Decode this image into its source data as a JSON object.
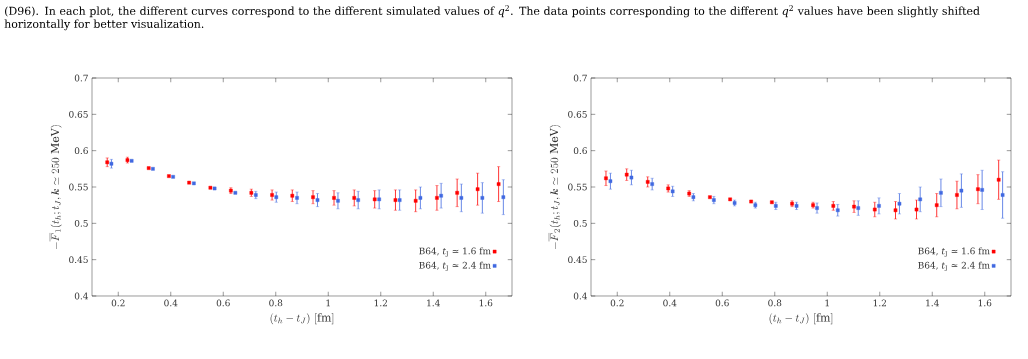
{
  "chart_data": [
    {
      "type": "scatter",
      "xlabel": "(t_h - t_J)\\ [\\mathrm{fm}]",
      "ylabel": "-\\overline{F}_1(t_h; t_J, \\boldsymbol{k} \\simeq 250\\ \\mathrm{MeV})",
      "annotations": [
        "(D96). In each plot, the different curves correspond to the different simulated values of *q*$^{2}$. The data points corresponding to the different *q*$^{2}$ values have been slightly shifted horizontally for better visualization."
      ],
      "xlim": [
        0.1,
        1.7
      ],
      "ylim": [
        0.4,
        0.7
      ],
      "xticks": [
        0.2,
        0.4,
        0.6,
        0.8,
        1,
        1.2,
        1.4,
        1.6
      ],
      "yticks": [
        0.4,
        0.45,
        0.5,
        0.55,
        0.6,
        0.65,
        0.7
      ],
      "grid": false,
      "legend": "bottom right",
      "marker": "square",
      "series": [
        {
          "name": "B64, *t*$_{J}$ ≃ 1.6 fm",
          "color": "#ff0000",
          "x": [
            0.158,
            0.235,
            0.316,
            0.393,
            0.47,
            0.551,
            0.629,
            0.707,
            0.786,
            0.863,
            0.942,
            1.022,
            1.099,
            1.177,
            1.256,
            1.333,
            1.414,
            1.491,
            1.569,
            1.649
          ],
          "values": [
            0.584,
            0.587,
            0.576,
            0.565,
            0.556,
            0.549,
            0.545,
            0.542,
            0.539,
            0.538,
            0.536,
            0.535,
            0.535,
            0.533,
            0.532,
            0.531,
            0.535,
            0.542,
            0.547,
            0.554
          ],
          "errors": [
            0.006,
            0.004,
            null,
            null,
            null,
            null,
            0.004,
            0.005,
            0.007,
            0.008,
            0.009,
            0.01,
            0.011,
            0.012,
            0.014,
            0.015,
            0.017,
            0.019,
            0.022,
            0.024
          ]
        },
        {
          "name": "B64, *t*$_{J}$ ≃ 2.4 fm",
          "color": "#4169e1",
          "x": [
            0.174,
            0.251,
            0.332,
            0.409,
            0.488,
            0.567,
            0.646,
            0.724,
            0.802,
            0.881,
            0.959,
            1.037,
            1.114,
            1.194,
            1.272,
            1.351,
            1.43,
            1.507,
            1.587,
            1.667
          ],
          "values": [
            0.582,
            0.586,
            0.575,
            0.564,
            0.555,
            0.548,
            0.542,
            0.539,
            0.536,
            0.535,
            0.532,
            0.531,
            0.532,
            0.533,
            0.532,
            0.535,
            0.538,
            0.535,
            0.535,
            0.536
          ],
          "errors": [
            0.006,
            null,
            null,
            null,
            null,
            null,
            null,
            0.005,
            0.007,
            0.008,
            0.009,
            0.011,
            0.012,
            0.013,
            0.014,
            0.015,
            0.017,
            0.019,
            0.021,
            0.024
          ]
        }
      ]
    },
    {
      "type": "scatter",
      "xlabel": "(t_h - t_J)\\ [\\mathrm{fm}]",
      "ylabel": "-\\overline{F}_2(t_h; t_J, \\boldsymbol{k} \\simeq 250\\ \\mathrm{MeV})",
      "xlim": [
        0.1,
        1.7
      ],
      "ylim": [
        0.4,
        0.7
      ],
      "xticks": [
        0.2,
        0.4,
        0.6,
        0.8,
        1,
        1.2,
        1.4,
        1.6
      ],
      "yticks": [
        0.4,
        0.45,
        0.5,
        0.55,
        0.6,
        0.65,
        0.7
      ],
      "grid": false,
      "legend": "bottom right",
      "marker": "square",
      "series": [
        {
          "name": "B64, *t*$_{J}$ ≃ 1.6 fm",
          "color": "#ff0000",
          "x": [
            0.157,
            0.236,
            0.316,
            0.394,
            0.474,
            0.553,
            0.63,
            0.71,
            0.789,
            0.866,
            0.946,
            1.023,
            1.102,
            1.181,
            1.26,
            1.34,
            1.417,
            1.494,
            1.574,
            1.653
          ],
          "values": [
            0.562,
            0.567,
            0.557,
            0.548,
            0.541,
            0.536,
            0.533,
            0.53,
            0.529,
            0.527,
            0.525,
            0.524,
            0.523,
            0.519,
            0.518,
            0.519,
            0.525,
            0.539,
            0.547,
            0.56
          ],
          "errors": [
            0.01,
            0.008,
            0.007,
            0.005,
            0.004,
            null,
            null,
            null,
            null,
            0.004,
            0.004,
            0.006,
            0.008,
            0.01,
            0.012,
            0.013,
            0.016,
            0.019,
            0.02,
            0.027
          ]
        },
        {
          "name": "B64, *t*$_{J}$ ≃ 2.4 fm",
          "color": "#4169e1",
          "x": [
            0.174,
            0.254,
            0.333,
            0.411,
            0.49,
            0.568,
            0.647,
            0.726,
            0.804,
            0.883,
            0.961,
            1.04,
            1.118,
            1.197,
            1.275,
            1.354,
            1.433,
            1.511,
            1.59,
            1.668
          ],
          "values": [
            0.558,
            0.563,
            0.554,
            0.544,
            0.536,
            0.532,
            0.528,
            0.525,
            0.524,
            0.524,
            0.521,
            0.518,
            0.521,
            0.524,
            0.527,
            0.533,
            0.542,
            0.545,
            0.546,
            0.539
          ],
          "errors": [
            0.011,
            0.01,
            0.008,
            0.007,
            0.005,
            0.005,
            0.004,
            0.004,
            0.005,
            0.005,
            0.007,
            0.008,
            0.01,
            0.011,
            0.014,
            0.017,
            0.019,
            0.023,
            0.027,
            0.032
          ]
        }
      ]
    }
  ]
}
